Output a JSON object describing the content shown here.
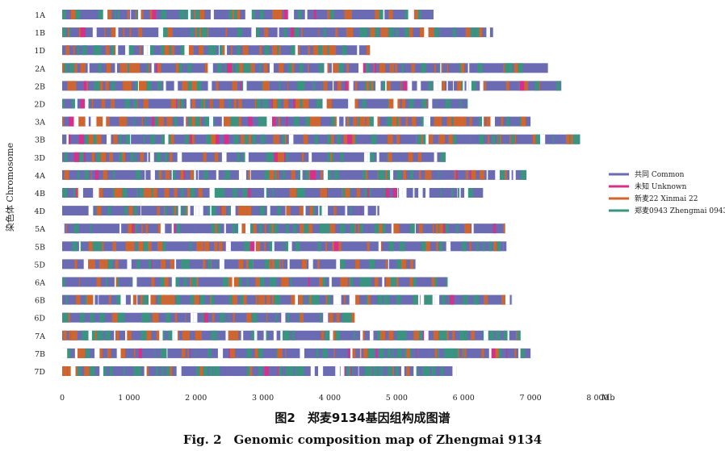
{
  "chart_data": {
    "type": "bar",
    "orientation": "horizontal",
    "ylabel": "染色体 Chromosome",
    "x_unit": "Mb",
    "xlim": [
      0,
      8000
    ],
    "x_ticks": [
      0,
      1000,
      2000,
      3000,
      4000,
      5000,
      6000,
      7000,
      8000
    ],
    "x_tick_labels": [
      "0",
      "1 000",
      "2 000",
      "3 000",
      "4 000",
      "5 000",
      "6 000",
      "7 000",
      "8 000"
    ],
    "legend_position": "right",
    "categories": [
      "1A",
      "1B",
      "1D",
      "2A",
      "2B",
      "2D",
      "3A",
      "3B",
      "3D",
      "4A",
      "4B",
      "4D",
      "5A",
      "5B",
      "5D",
      "6A",
      "6B",
      "6D",
      "7A",
      "7B",
      "7D"
    ],
    "chromosome_lengths": [
      5550,
      6440,
      4600,
      7260,
      7460,
      6060,
      7000,
      7740,
      5730,
      6940,
      6290,
      4740,
      6620,
      6640,
      5280,
      5760,
      6730,
      4370,
      6850,
      7000,
      5900
    ],
    "series": [
      {
        "name": "共同 Common",
        "color": "#6b6bb3"
      },
      {
        "name": "未知 Unknown",
        "color": "#d6308a"
      },
      {
        "name": "新麦22 Xinmai 22",
        "color": "#cf6630"
      },
      {
        "name": "郑麦0943 Zhengmai 0943",
        "color": "#3a9480"
      }
    ]
  },
  "caption": {
    "zh": "图2　郑麦9134基因组构成图谱",
    "en": "Fig. 2　Genomic composition map of Zhengmai 9134"
  }
}
